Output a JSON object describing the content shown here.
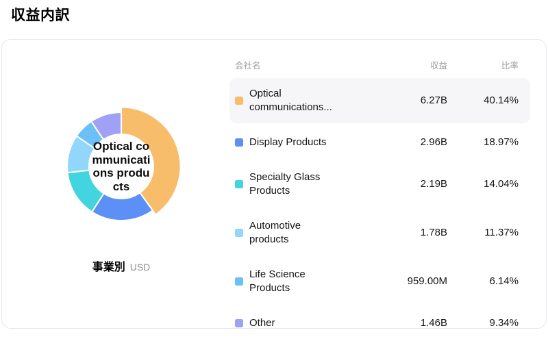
{
  "page": {
    "title": "収益内訳"
  },
  "table": {
    "headers": {
      "name": "会社名",
      "revenue": "収益",
      "ratio": "比率"
    },
    "rows": [
      {
        "label": "Optical communications...",
        "revenue": "6.27B",
        "ratio": "40.14%",
        "color": "#F8BD6B",
        "highlighted": true
      },
      {
        "label": "Display Products",
        "revenue": "2.96B",
        "ratio": "18.97%",
        "color": "#5C90F6",
        "highlighted": false
      },
      {
        "label": "Specialty Glass Products",
        "revenue": "2.19B",
        "ratio": "14.04%",
        "color": "#43D5DF",
        "highlighted": false
      },
      {
        "label": "Automotive products",
        "revenue": "1.78B",
        "ratio": "11.37%",
        "color": "#92D6FB",
        "highlighted": false
      },
      {
        "label": "Life Science Products",
        "revenue": "959.00M",
        "ratio": "6.14%",
        "color": "#6CC0F8",
        "highlighted": false
      },
      {
        "label": "Other",
        "revenue": "1.46B",
        "ratio": "9.34%",
        "color": "#A0A0F4",
        "highlighted": false
      }
    ]
  },
  "chart": {
    "center_label": "Optical communications products",
    "center_label_lines": [
      "Optical co",
      "mmunicati",
      "ons produ",
      "cts"
    ],
    "footer_label": "事業別",
    "footer_unit": "USD"
  },
  "chart_data": {
    "type": "pie",
    "title": "収益内訳",
    "dimension": "事業別",
    "unit": "USD",
    "legend_position": "right-table",
    "donut": true,
    "series": [
      {
        "name": "Optical communications products",
        "revenue": "6.27B",
        "pct": 40.14,
        "color": "#F8BD6B",
        "selected": true
      },
      {
        "name": "Display Products",
        "revenue": "2.96B",
        "pct": 18.97,
        "color": "#5C90F6",
        "selected": false
      },
      {
        "name": "Specialty Glass Products",
        "revenue": "2.19B",
        "pct": 14.04,
        "color": "#43D5DF",
        "selected": false
      },
      {
        "name": "Automotive products",
        "revenue": "1.78B",
        "pct": 11.37,
        "color": "#92D6FB",
        "selected": false
      },
      {
        "name": "Life Science Products",
        "revenue": "959.00M",
        "pct": 6.14,
        "color": "#6CC0F8",
        "selected": false
      },
      {
        "name": "Other",
        "revenue": "1.46B",
        "pct": 9.34,
        "color": "#A0A0F4",
        "selected": false
      }
    ]
  }
}
